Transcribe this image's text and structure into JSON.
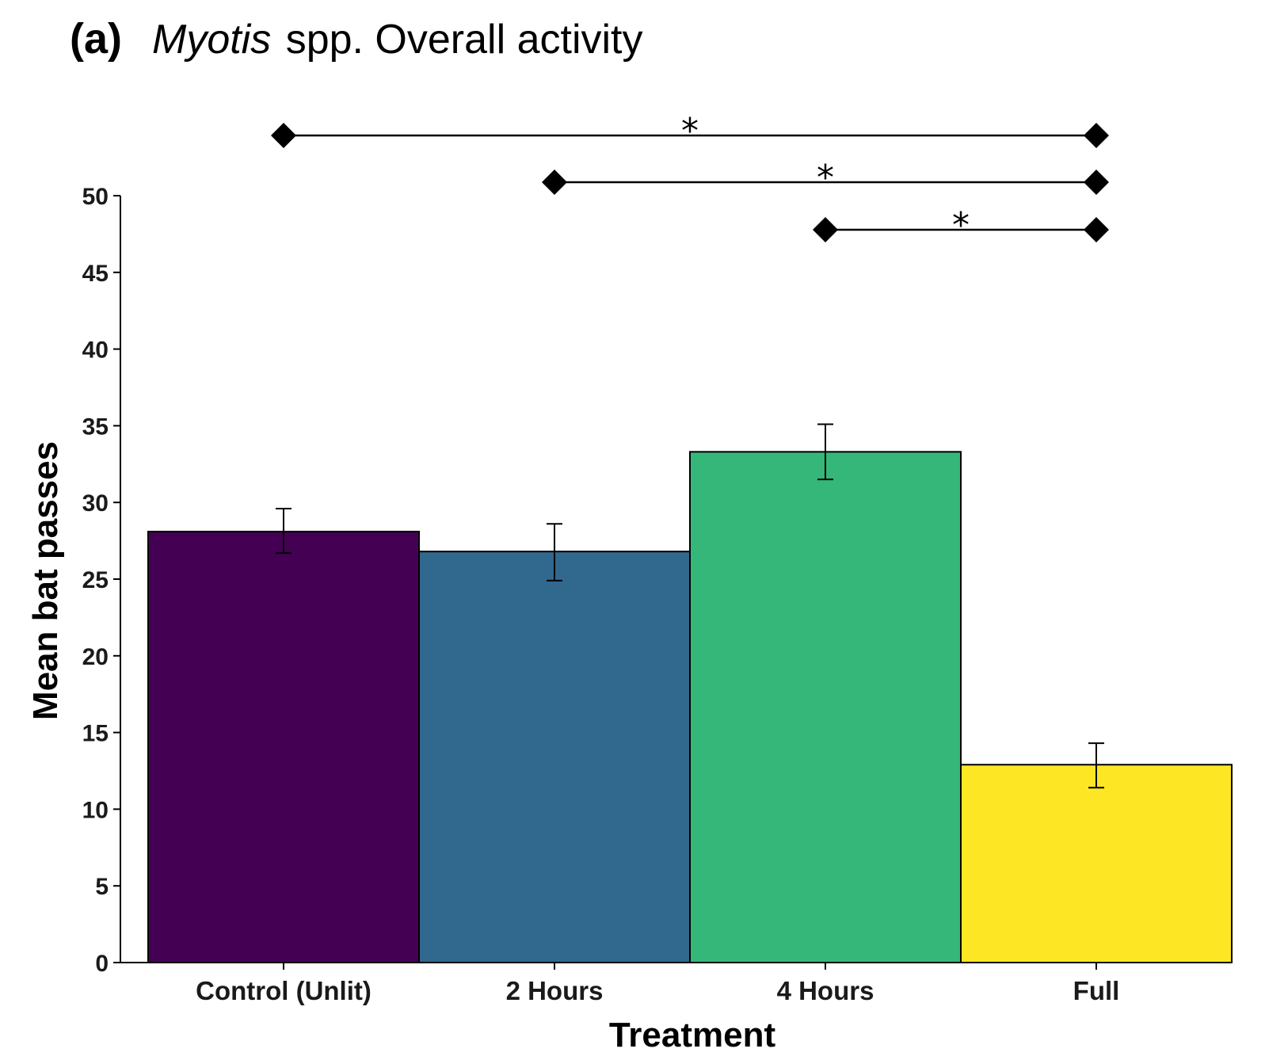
{
  "chart_data": {
    "type": "bar",
    "title": {
      "panel": "(a)",
      "italic": "Myotis",
      "rest": " spp. Overall activity"
    },
    "xlabel": "Treatment",
    "ylabel": "Mean bat passes",
    "ylim": [
      0,
      50
    ],
    "yticks": [
      0,
      5,
      10,
      15,
      20,
      25,
      30,
      35,
      40,
      45,
      50
    ],
    "grid": false,
    "legend": "none",
    "categories": [
      "Control (Unlit)",
      "2 Hours",
      "4 Hours",
      "Full"
    ],
    "values": [
      28.1,
      26.8,
      33.3,
      12.9
    ],
    "error_bars": [
      {
        "low": 26.7,
        "high": 29.6
      },
      {
        "low": 24.9,
        "high": 28.6
      },
      {
        "low": 31.5,
        "high": 35.1
      },
      {
        "low": 11.4,
        "high": 14.3
      }
    ],
    "colors": [
      "#440154",
      "#31688E",
      "#35B779",
      "#FDE725"
    ],
    "significance": [
      {
        "from": "Control (Unlit)",
        "to": "Full",
        "label": "*"
      },
      {
        "from": "2 Hours",
        "to": "Full",
        "label": "*"
      },
      {
        "from": "4 Hours",
        "to": "Full",
        "label": "*"
      }
    ]
  }
}
